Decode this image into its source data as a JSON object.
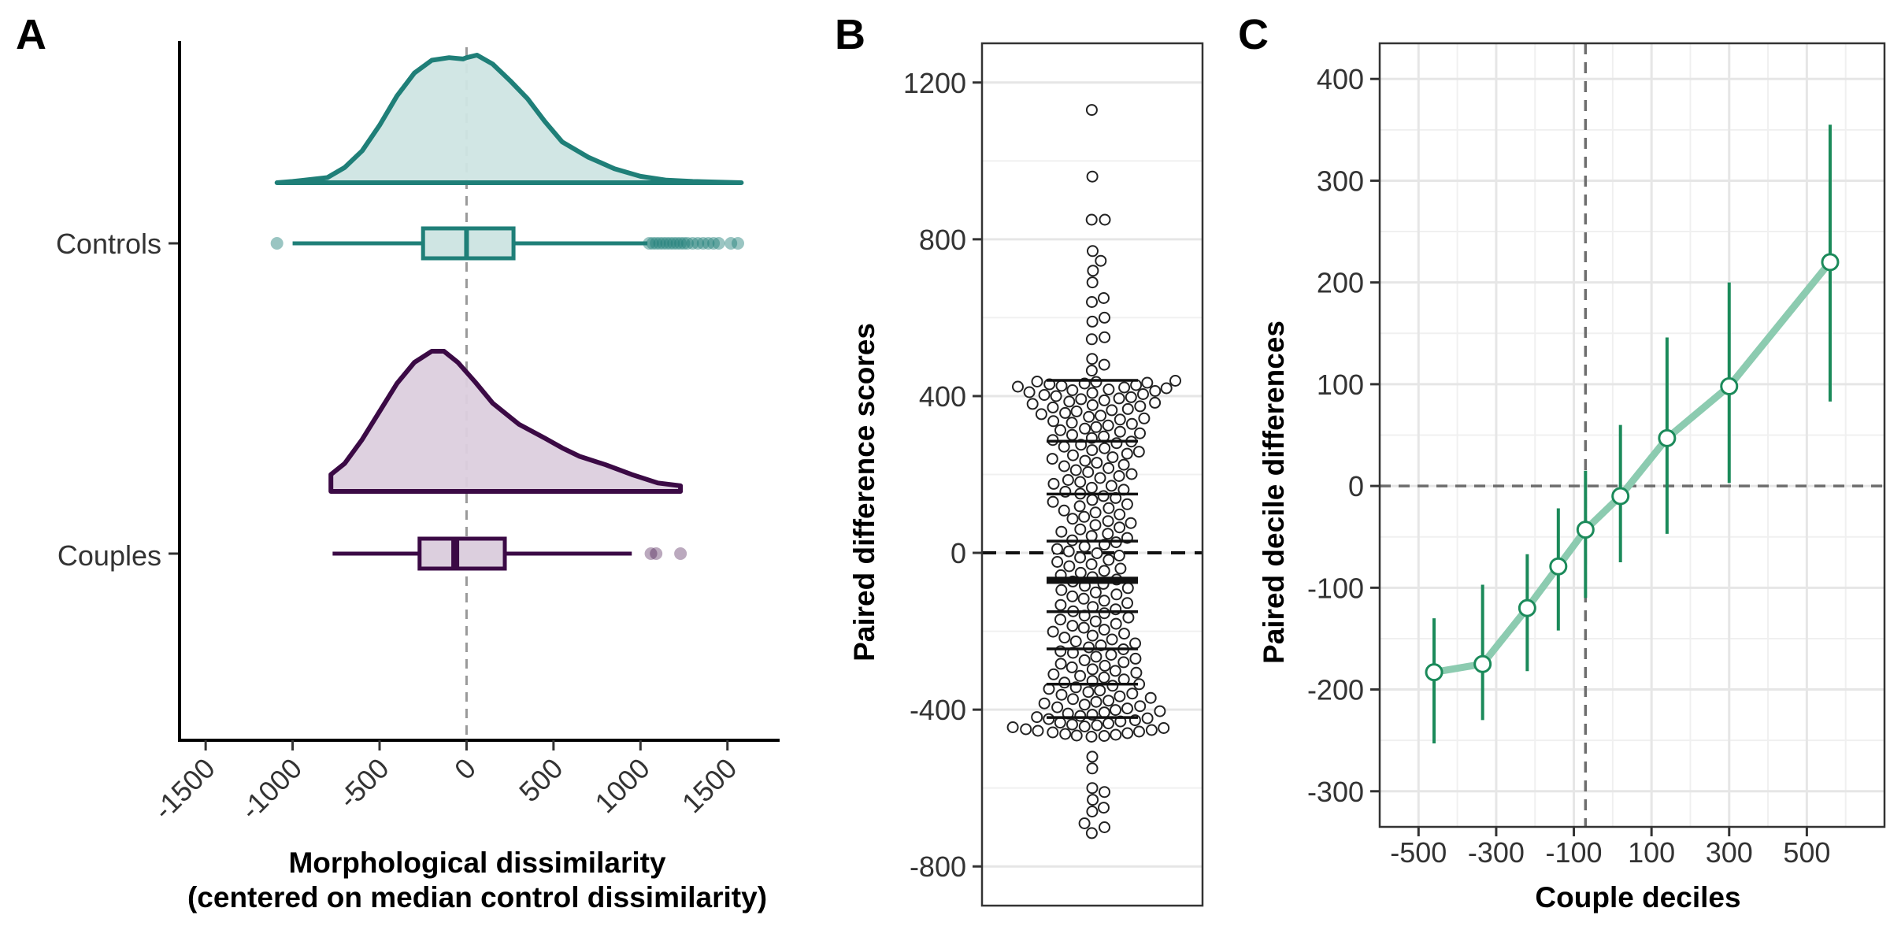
{
  "colors": {
    "controls": "#1f7f78",
    "controls_fill": "#cfe5e3",
    "couples": "#3b0a45",
    "couples_fill": "#dccfde",
    "green_line": "#8ccbb0",
    "green_err": "#1b8a5a",
    "grid": "#e6e6e6"
  },
  "chart_data": [
    {
      "panel": "A",
      "type": "raincloud",
      "xlabel_line1": "Morphological dissimilarity",
      "xlabel_line2": "(centered on median control dissimilarity)",
      "xlim": [
        -1650,
        1800
      ],
      "xticks": [
        -1500,
        -1000,
        -500,
        0,
        500,
        1000,
        1500
      ],
      "xtick_labels": [
        "-1500",
        "-1000",
        "-500",
        "0",
        "500",
        "1000",
        "1500"
      ],
      "reference_line_x": 0,
      "categories": [
        "Controls",
        "Couples"
      ],
      "groups": [
        {
          "name": "Controls",
          "density": [
            [
              -1090,
              0.0
            ],
            [
              -1000,
              0.01
            ],
            [
              -800,
              0.04
            ],
            [
              -700,
              0.12
            ],
            [
              -600,
              0.25
            ],
            [
              -500,
              0.45
            ],
            [
              -400,
              0.68
            ],
            [
              -300,
              0.86
            ],
            [
              -200,
              0.96
            ],
            [
              -100,
              0.98
            ],
            [
              -20,
              0.97
            ],
            [
              0,
              0.98
            ],
            [
              60,
              1.0
            ],
            [
              150,
              0.93
            ],
            [
              250,
              0.8
            ],
            [
              350,
              0.66
            ],
            [
              450,
              0.48
            ],
            [
              550,
              0.32
            ],
            [
              700,
              0.2
            ],
            [
              850,
              0.11
            ],
            [
              1000,
              0.05
            ],
            [
              1150,
              0.02
            ],
            [
              1300,
              0.01
            ],
            [
              1580,
              0.0
            ]
          ],
          "box": {
            "whisker_low": -1000,
            "q1": -250,
            "median": 0,
            "q3": 270,
            "whisker_high": 1040
          },
          "outliers": [
            -1090,
            1050,
            1070,
            1090,
            1110,
            1130,
            1150,
            1170,
            1190,
            1210,
            1230,
            1250,
            1270,
            1300,
            1330,
            1360,
            1390,
            1420,
            1450,
            1520,
            1560
          ]
        },
        {
          "name": "Couples",
          "density": [
            [
              -780,
              0.0
            ],
            [
              -780,
              0.12
            ],
            [
              -700,
              0.2
            ],
            [
              -600,
              0.37
            ],
            [
              -500,
              0.57
            ],
            [
              -400,
              0.77
            ],
            [
              -300,
              0.92
            ],
            [
              -200,
              1.0
            ],
            [
              -130,
              1.0
            ],
            [
              -50,
              0.92
            ],
            [
              50,
              0.78
            ],
            [
              150,
              0.63
            ],
            [
              300,
              0.48
            ],
            [
              450,
              0.38
            ],
            [
              550,
              0.31
            ],
            [
              650,
              0.25
            ],
            [
              800,
              0.19
            ],
            [
              950,
              0.12
            ],
            [
              1100,
              0.06
            ],
            [
              1230,
              0.04
            ],
            [
              1230,
              0.0
            ]
          ],
          "box": {
            "whisker_low": -770,
            "q1": -270,
            "median": -65,
            "q3": 220,
            "whisker_high": 950
          },
          "outliers": [
            1060,
            1090,
            1230
          ]
        }
      ]
    },
    {
      "panel": "B",
      "type": "beeswarm",
      "ylabel": "Paired difference scores",
      "ylim": [
        -900,
        1300
      ],
      "yticks": [
        -800,
        -400,
        0,
        400,
        800,
        1200
      ],
      "ytick_labels": [
        "-800",
        "-400",
        "0",
        "400",
        "800",
        "1200"
      ],
      "reference_line_y": 0,
      "decile_lines": [
        -420,
        -335,
        -245,
        -150,
        -75,
        30,
        150,
        285,
        440
      ],
      "median_line": -70,
      "outer_points": [
        1130,
        960,
        850,
        850,
        770,
        745,
        720,
        690,
        650,
        640,
        600,
        590,
        550,
        545,
        495,
        480,
        465,
        -520,
        -550,
        -600,
        -610,
        -630,
        -650,
        -660,
        -690,
        -700,
        -715
      ],
      "core_range": [
        -470,
        440
      ],
      "core_count": 220
    },
    {
      "panel": "C",
      "type": "line",
      "xlabel": "Couple deciles",
      "ylabel": "Paired decile differences",
      "xlim": [
        -600,
        700
      ],
      "ylim": [
        -335,
        435
      ],
      "xticks": [
        -500,
        -300,
        -100,
        100,
        300,
        500
      ],
      "xtick_labels": [
        "-500",
        "-300",
        "-100",
        "100",
        "300",
        "500"
      ],
      "yticks": [
        -300,
        -200,
        -100,
        0,
        100,
        200,
        300,
        400
      ],
      "ytick_labels": [
        "-300",
        "-200",
        "-100",
        "0",
        "100",
        "200",
        "300",
        "400"
      ],
      "reference_line_x": -70,
      "reference_line_y": 0,
      "x": [
        -460,
        -335,
        -220,
        -140,
        -70,
        20,
        140,
        300,
        560
      ],
      "y": [
        -183,
        -175,
        -120,
        -79,
        -43,
        -10,
        47,
        98,
        220
      ],
      "err_low": [
        -253,
        -230,
        -182,
        -142,
        -110,
        -75,
        -47,
        3,
        83
      ],
      "err_high": [
        -130,
        -97,
        -67,
        -22,
        15,
        60,
        146,
        200,
        355
      ]
    }
  ],
  "panels": {
    "a": {
      "letter": "A",
      "cat_controls": "Controls",
      "cat_couples": "Couples"
    },
    "b": {
      "letter": "B"
    },
    "c": {
      "letter": "C"
    }
  }
}
